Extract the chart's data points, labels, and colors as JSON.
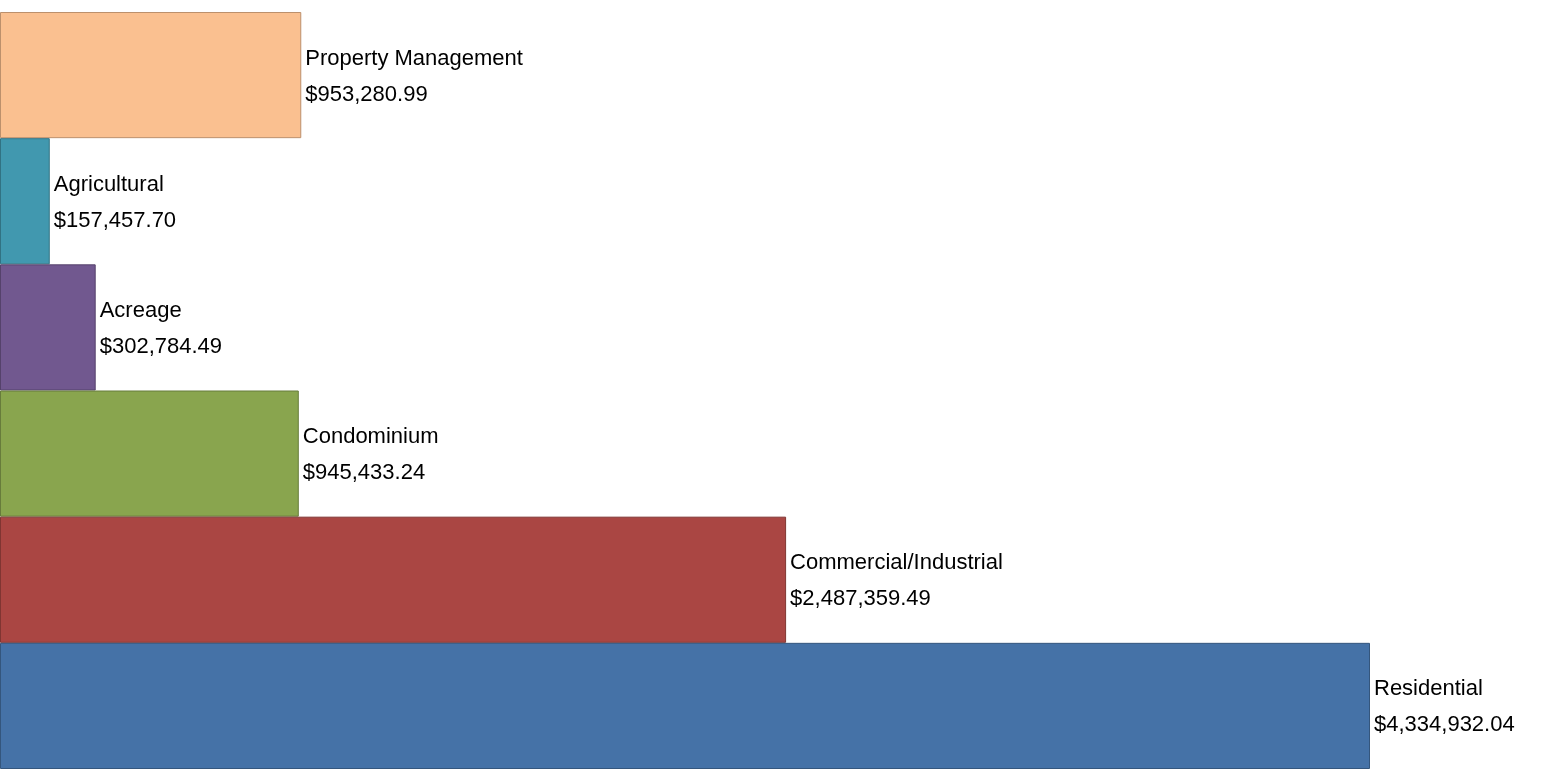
{
  "chart_data": {
    "type": "bar",
    "orientation": "horizontal",
    "categories": [
      "Property Management",
      "Agricultural",
      "Acreage",
      "Condominium",
      "Commercial/Industrial",
      "Residential"
    ],
    "values": [
      953280.99,
      157457.7,
      302784.49,
      945433.24,
      2487359.49,
      4334932.04
    ],
    "value_labels": [
      "$953,280.99",
      "$157,457.70",
      "$302,784.49",
      "$945,433.24",
      "$2,487,359.49",
      "$4,334,932.04"
    ],
    "colors": [
      "#fac090",
      "#4198af",
      "#71588f",
      "#89a54e",
      "#aa4643",
      "#4572a7"
    ]
  }
}
